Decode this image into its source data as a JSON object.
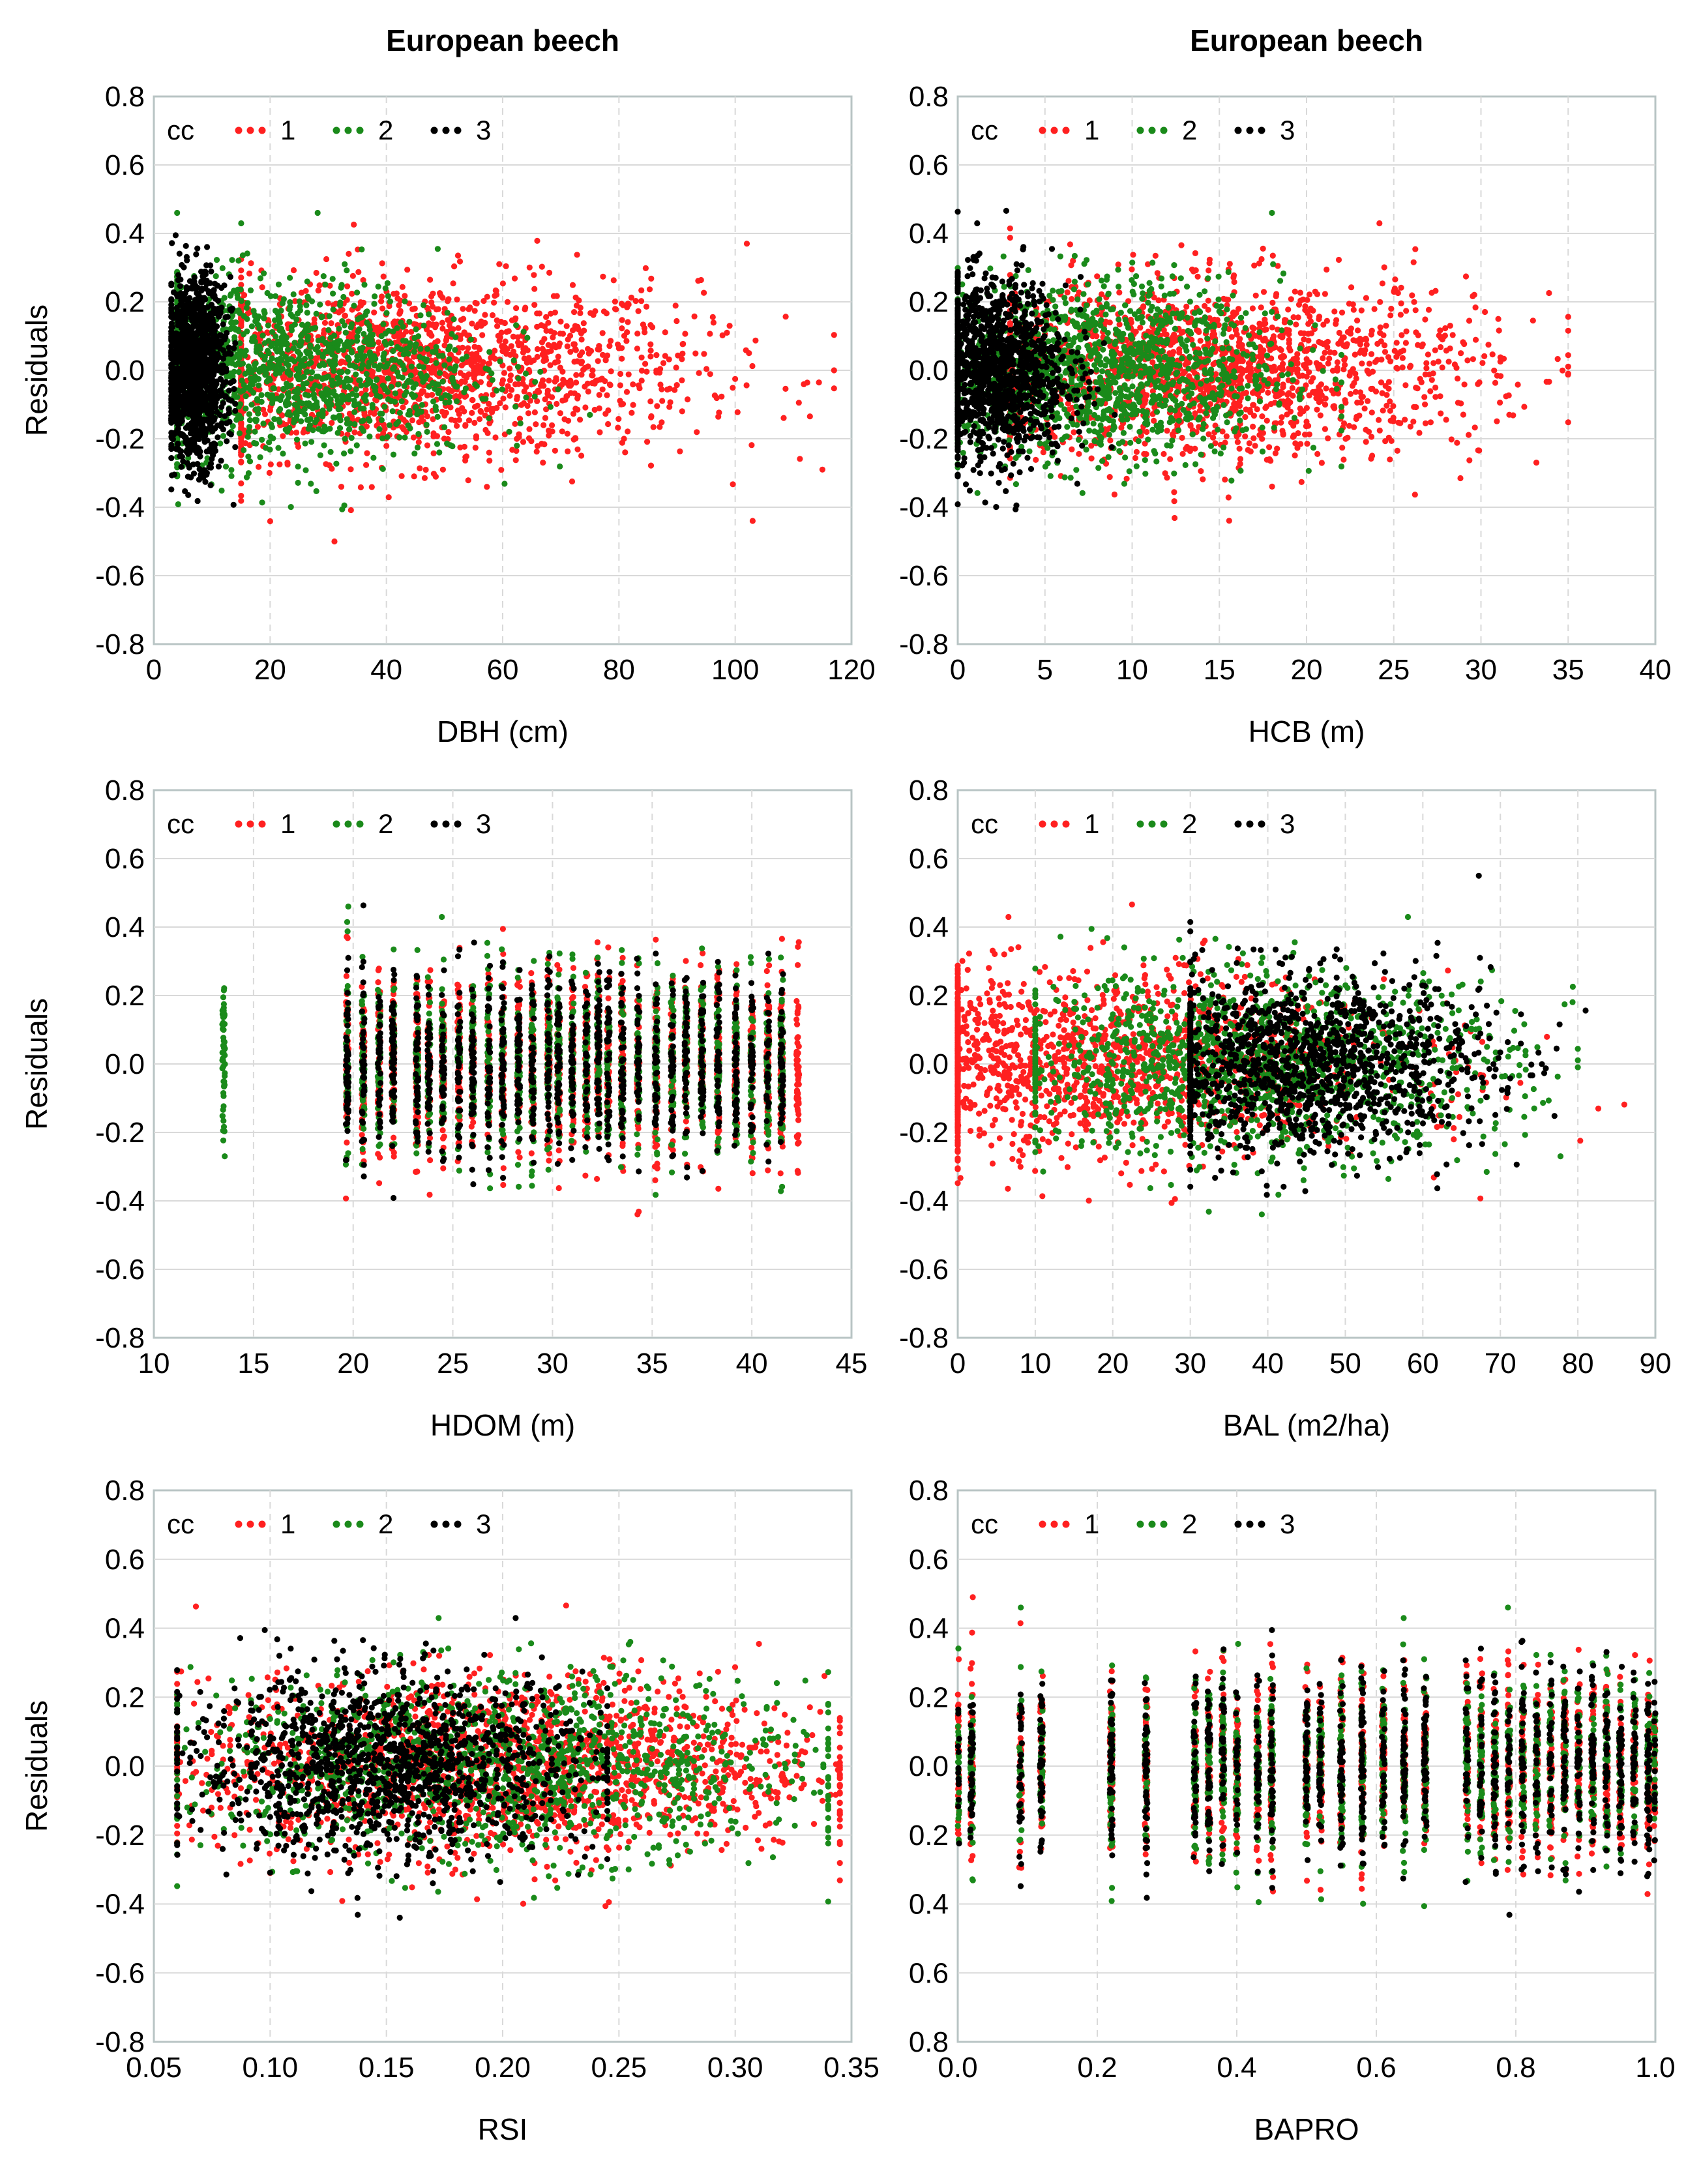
{
  "colors": {
    "series_1": "#ff2020",
    "series_2": "#1a8a1a",
    "series_3": "#000000",
    "grid": "#d9d9d9",
    "frame": "#b8c4c4"
  },
  "legend": {
    "title": "cc",
    "labels": [
      "1",
      "2",
      "3"
    ]
  },
  "chart_data": [
    {
      "type": "scatter",
      "title": "European beech",
      "xlabel": "DBH (cm)",
      "ylabel": "Residuals",
      "xlim": [
        0,
        120
      ],
      "ylim": [
        -0.8,
        0.8
      ],
      "xticks": [
        "0",
        "20",
        "40",
        "60",
        "80",
        "100",
        "120"
      ],
      "yticks": [
        "0.8",
        "0.6",
        "0.4",
        "0.2",
        "0.0",
        "-0.2",
        "-0.4",
        "-0.6",
        "-0.8"
      ],
      "grid": "vertical-dashed-horizontal-solid",
      "legend_position": "top-left",
      "series": [
        {
          "name": "1",
          "x_range": [
            15,
            117
          ],
          "y_range": [
            -0.5,
            0.49
          ],
          "center_x": 45,
          "note_points": [
            [
              102,
              0.37
            ],
            [
              103,
              -0.44
            ],
            [
              115,
              -0.29
            ],
            [
              117,
              0.0
            ]
          ]
        },
        {
          "name": "2",
          "x_range": [
            4,
            75
          ],
          "y_range": [
            -0.48,
            0.46
          ],
          "center_x": 22
        },
        {
          "name": "3",
          "x_range": [
            3,
            14
          ],
          "y_range": [
            -0.43,
            0.55
          ],
          "center_x": 7
        }
      ]
    },
    {
      "type": "scatter",
      "title": "European beech",
      "xlabel": "HCB (m)",
      "ylabel": "",
      "xlim": [
        0,
        40
      ],
      "ylim": [
        -0.8,
        0.8
      ],
      "xticks": [
        "0",
        "5",
        "10",
        "15",
        "20",
        "25",
        "30",
        "35",
        "40"
      ],
      "yticks": [
        "0.8",
        "0.6",
        "0.4",
        "0.2",
        "0.0",
        "-0.2",
        "-0.4",
        "-0.6",
        "-0.8"
      ],
      "grid": "vertical-dashed-horizontal-solid",
      "legend_position": "top-left",
      "series": [
        {
          "name": "1",
          "x_range": [
            3,
            35
          ],
          "y_range": [
            -0.49,
            0.49
          ],
          "center_x": 15
        },
        {
          "name": "2",
          "x_range": [
            0,
            22
          ],
          "y_range": [
            -0.48,
            0.46
          ],
          "center_x": 8
        },
        {
          "name": "3",
          "x_range": [
            0,
            9
          ],
          "y_range": [
            -0.43,
            0.55
          ],
          "center_x": 2
        }
      ]
    },
    {
      "type": "scatter",
      "title": "",
      "xlabel": "HDOM (m)",
      "ylabel": "Residuals",
      "xlim": [
        10,
        45
      ],
      "ylim": [
        -0.8,
        0.8
      ],
      "xticks": [
        "10",
        "15",
        "20",
        "25",
        "30",
        "35",
        "40",
        "45"
      ],
      "yticks": [
        "0.8",
        "0.6",
        "0.4",
        "0.2",
        "0.0",
        "-0.2",
        "-0.4",
        "-0.6",
        "-0.8"
      ],
      "grid": "vertical-dashed-horizontal-solid",
      "legend_position": "top-left",
      "x_columns": [
        13.5,
        19.7,
        20.5,
        21.3,
        22.0,
        23.2,
        23.8,
        24.5,
        25.3,
        26.0,
        26.8,
        27.5,
        28.3,
        29.0,
        29.8,
        30.3,
        31.0,
        31.7,
        32.3,
        32.8,
        33.5,
        34.3,
        35.2,
        36.0,
        36.7,
        37.5,
        38.3,
        39.2,
        40.0,
        40.8,
        41.5,
        42.3
      ],
      "series": [
        {
          "name": "1",
          "x_range": [
            19.5,
            42.5
          ],
          "y_range": [
            -0.5,
            0.49
          ]
        },
        {
          "name": "2",
          "x_range": [
            13.5,
            42
          ],
          "y_range": [
            -0.48,
            0.46
          ]
        },
        {
          "name": "3",
          "x_range": [
            19.5,
            42
          ],
          "y_range": [
            -0.43,
            0.55
          ]
        }
      ]
    },
    {
      "type": "scatter",
      "title": "",
      "xlabel": "BAL (m2/ha)",
      "ylabel": "",
      "xlim": [
        0,
        90
      ],
      "ylim": [
        -0.8,
        0.8
      ],
      "xticks": [
        "0",
        "10",
        "20",
        "30",
        "40",
        "50",
        "60",
        "70",
        "80",
        "90"
      ],
      "yticks": [
        "0.8",
        "0.6",
        "0.4",
        "0.2",
        "0.0",
        "-0.2",
        "-0.4",
        "-0.6",
        "-0.8"
      ],
      "grid": "vertical-dashed-horizontal-solid",
      "legend_position": "top-left",
      "series": [
        {
          "name": "1",
          "x_range": [
            0,
            86
          ],
          "y_range": [
            -0.49,
            0.48
          ],
          "center_x": 15
        },
        {
          "name": "2",
          "x_range": [
            10,
            80
          ],
          "y_range": [
            -0.48,
            0.46
          ],
          "center_x": 38
        },
        {
          "name": "3",
          "x_range": [
            30,
            81
          ],
          "y_range": [
            -0.46,
            0.55
          ],
          "center_x": 44
        }
      ]
    },
    {
      "type": "scatter",
      "title": "",
      "xlabel": "RSI",
      "ylabel": "Residuals",
      "xlim": [
        0.05,
        0.35
      ],
      "ylim": [
        -0.8,
        0.8
      ],
      "xticks": [
        "0.05",
        "0.10",
        "0.15",
        "0.20",
        "0.25",
        "0.30",
        "0.35"
      ],
      "yticks": [
        "0.8",
        "0.6",
        "0.4",
        "0.2",
        "0.0",
        "-0.2",
        "-0.4",
        "-0.6",
        "-0.8"
      ],
      "grid": "vertical-dashed-horizontal-solid",
      "legend_position": "top-left",
      "series": [
        {
          "name": "1",
          "x_range": [
            0.06,
            0.345
          ],
          "y_range": [
            -0.5,
            0.49
          ]
        },
        {
          "name": "2",
          "x_range": [
            0.06,
            0.34
          ],
          "y_range": [
            -0.49,
            0.46
          ]
        },
        {
          "name": "3",
          "x_range": [
            0.06,
            0.245
          ],
          "y_range": [
            -0.44,
            0.55
          ]
        }
      ]
    },
    {
      "type": "scatter",
      "title": "",
      "xlabel": "BAPRO",
      "ylabel": "",
      "xlim": [
        0.0,
        1.0
      ],
      "ylim": [
        -0.8,
        0.8
      ],
      "xticks": [
        "0.0",
        "0.2",
        "0.4",
        "0.6",
        "0.8",
        "1.0"
      ],
      "yticks": [
        "0.8",
        "0.6",
        "0.4",
        "0.2",
        "0.0",
        "0.2",
        "0.4",
        "0.6",
        "0.8"
      ],
      "grid": "vertical-dashed-horizontal-solid",
      "legend_position": "top-left",
      "x_columns": [
        0.0,
        0.02,
        0.09,
        0.12,
        0.22,
        0.27,
        0.34,
        0.36,
        0.38,
        0.4,
        0.43,
        0.45,
        0.5,
        0.52,
        0.55,
        0.58,
        0.61,
        0.64,
        0.67,
        0.73,
        0.75,
        0.77,
        0.79,
        0.81,
        0.83,
        0.85,
        0.87,
        0.89,
        0.91,
        0.93,
        0.95,
        0.97,
        0.99,
        1.0
      ],
      "series": [
        {
          "name": "1",
          "x_range": [
            0.0,
            1.0
          ],
          "y_range": [
            -0.5,
            0.49
          ]
        },
        {
          "name": "2",
          "x_range": [
            0.0,
            1.0
          ],
          "y_range": [
            -0.48,
            0.46
          ]
        },
        {
          "name": "3",
          "x_range": [
            0.0,
            1.0
          ],
          "y_range": [
            -0.44,
            0.55
          ]
        }
      ]
    }
  ]
}
